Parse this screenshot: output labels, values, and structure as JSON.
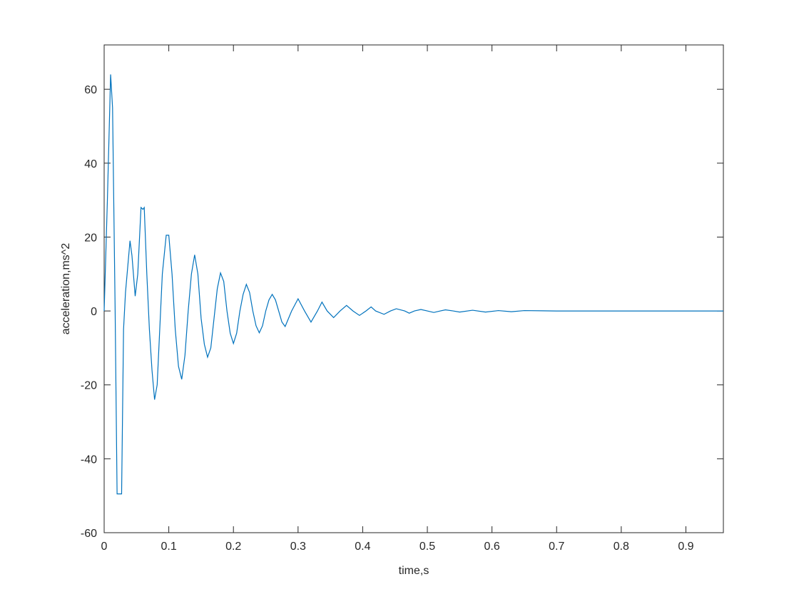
{
  "chart_data": {
    "type": "line",
    "xlabel": "time,s",
    "ylabel": "acceleration,ms^2",
    "xlim": [
      0,
      0.958
    ],
    "ylim": [
      -60,
      72
    ],
    "xticks": [
      0,
      0.1,
      0.2,
      0.3,
      0.4,
      0.5,
      0.6,
      0.7,
      0.8,
      0.9
    ],
    "yticks": [
      -60,
      -40,
      -20,
      0,
      20,
      40,
      60
    ],
    "series": [
      {
        "color": "#0072bd",
        "x": [
          0,
          0.005,
          0.01,
          0.013,
          0.017,
          0.02,
          0.027,
          0.03,
          0.033,
          0.04,
          0.043,
          0.048,
          0.052,
          0.057,
          0.06,
          0.062,
          0.066,
          0.07,
          0.074,
          0.078,
          0.082,
          0.086,
          0.09,
          0.096,
          0.1,
          0.105,
          0.11,
          0.115,
          0.12,
          0.125,
          0.13,
          0.135,
          0.14,
          0.145,
          0.15,
          0.155,
          0.16,
          0.165,
          0.17,
          0.175,
          0.18,
          0.185,
          0.19,
          0.195,
          0.2,
          0.205,
          0.21,
          0.215,
          0.22,
          0.225,
          0.23,
          0.235,
          0.24,
          0.245,
          0.25,
          0.255,
          0.26,
          0.265,
          0.27,
          0.275,
          0.28,
          0.29,
          0.3,
          0.31,
          0.32,
          0.33,
          0.337,
          0.345,
          0.355,
          0.365,
          0.375,
          0.385,
          0.395,
          0.405,
          0.413,
          0.42,
          0.433,
          0.443,
          0.452,
          0.465,
          0.472,
          0.48,
          0.49,
          0.5,
          0.51,
          0.52,
          0.528,
          0.54,
          0.55,
          0.57,
          0.59,
          0.61,
          0.63,
          0.65,
          0.7,
          0.75,
          0.8,
          0.85,
          0.9,
          0.958
        ],
        "values": [
          0,
          30,
          64,
          55,
          0,
          -49.5,
          -49.5,
          -5,
          5,
          19,
          15,
          4,
          10,
          28,
          27.5,
          28,
          10,
          -5,
          -16,
          -24,
          -20,
          -5,
          10,
          20.5,
          20.5,
          10,
          -5,
          -15,
          -18.5,
          -12,
          0,
          10,
          15.2,
          10,
          -2,
          -9,
          -12.5,
          -10,
          -2,
          6,
          10.3,
          8,
          0,
          -6,
          -8.8,
          -6,
          0,
          4.5,
          7.2,
          5,
          0,
          -4,
          -5.9,
          -4,
          0,
          3,
          4.5,
          3,
          0,
          -3,
          -4.2,
          0,
          3.3,
          0,
          -3,
          0,
          2.4,
          0,
          -1.8,
          0,
          1.5,
          0,
          -1.2,
          0,
          1.1,
          0,
          -0.9,
          0,
          0.6,
          0,
          -0.6,
          0,
          0.4,
          0,
          -0.4,
          0,
          0.3,
          0,
          -0.3,
          0.2,
          -0.3,
          0.1,
          -0.2,
          0.1,
          0,
          0,
          0,
          0,
          0,
          0
        ]
      }
    ]
  }
}
